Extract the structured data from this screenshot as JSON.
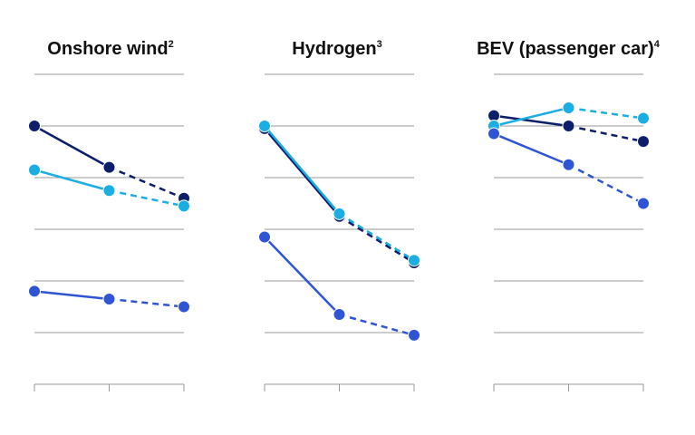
{
  "colors": {
    "navy": "#0d1f6b",
    "cyan": "#1aaee3",
    "blue": "#2f55d4"
  },
  "chart_data": [
    {
      "type": "line",
      "title": "Onshore wind",
      "title_sup": "2",
      "x": [
        0,
        1,
        2
      ],
      "ylim": [
        0,
        6
      ],
      "grid": true,
      "series": [
        {
          "color": "#0d1f6b",
          "values": [
            5.0,
            4.2,
            3.6
          ],
          "dashed_from": 1
        },
        {
          "color": "#1aaee3",
          "values": [
            4.15,
            3.75,
            3.45
          ],
          "dashed_from": 1
        },
        {
          "color": "#2f55d4",
          "values": [
            1.8,
            1.65,
            1.5
          ],
          "dashed_from": 1
        }
      ]
    },
    {
      "type": "line",
      "title": "Hydrogen",
      "title_sup": "3",
      "x": [
        0,
        1,
        2
      ],
      "ylim": [
        0,
        6
      ],
      "grid": true,
      "series": [
        {
          "color": "#0d1f6b",
          "values": [
            4.95,
            3.25,
            2.35
          ],
          "dashed_from": 1
        },
        {
          "color": "#1aaee3",
          "values": [
            5.0,
            3.3,
            2.4
          ],
          "dashed_from": 1
        },
        {
          "color": "#2f55d4",
          "values": [
            2.85,
            1.35,
            0.95
          ],
          "dashed_from": 1
        }
      ]
    },
    {
      "type": "line",
      "title": "BEV (passenger car)",
      "title_sup": "4",
      "x": [
        0,
        1,
        2
      ],
      "ylim": [
        0,
        6
      ],
      "grid": true,
      "series": [
        {
          "color": "#0d1f6b",
          "values": [
            5.2,
            5.0,
            4.7
          ],
          "dashed_from": 1
        },
        {
          "color": "#1aaee3",
          "values": [
            5.0,
            5.35,
            5.15
          ],
          "dashed_from": 1
        },
        {
          "color": "#2f55d4",
          "values": [
            4.85,
            4.25,
            3.5
          ],
          "dashed_from": 1
        }
      ]
    }
  ]
}
